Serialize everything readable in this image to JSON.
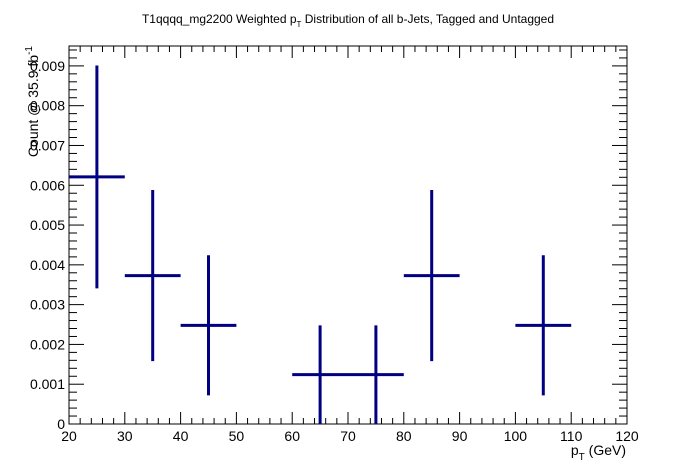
{
  "chart_data": {
    "type": "scatter",
    "title": {
      "pre": "T1qqqq_mg2200 Weighted p",
      "sub": "T",
      "post": " Distribution of all b-Jets, Tagged and Untagged"
    },
    "xlabel": {
      "main": "p",
      "sub": "T",
      "post": " (GeV)"
    },
    "ylabel": {
      "main": "Count @ 35.9 fb",
      "sup": "-1"
    },
    "xlim": [
      20,
      120
    ],
    "ylim": [
      0,
      0.0095
    ],
    "x_ticks": [
      "20",
      "30",
      "40",
      "50",
      "60",
      "70",
      "80",
      "90",
      "100",
      "110",
      "120"
    ],
    "y_ticks": [
      "0",
      "0.001",
      "0.002",
      "0.003",
      "0.004",
      "0.005",
      "0.006",
      "0.007",
      "0.008",
      "0.009"
    ],
    "series": [
      {
        "color": "#000080",
        "points": [
          {
            "x": 25,
            "x_low": 20,
            "x_high": 30,
            "y": 0.00621,
            "y_err": 0.0028
          },
          {
            "x": 35,
            "x_low": 30,
            "x_high": 40,
            "y": 0.00373,
            "y_err": 0.00215
          },
          {
            "x": 45,
            "x_low": 40,
            "x_high": 50,
            "y": 0.00248,
            "y_err": 0.00176
          },
          {
            "x": 65,
            "x_low": 60,
            "x_high": 70,
            "y": 0.00124,
            "y_err": 0.00124
          },
          {
            "x": 75,
            "x_low": 70,
            "x_high": 80,
            "y": 0.00124,
            "y_err": 0.00124
          },
          {
            "x": 85,
            "x_low": 80,
            "x_high": 90,
            "y": 0.00373,
            "y_err": 0.00215
          },
          {
            "x": 105,
            "x_low": 100,
            "x_high": 110,
            "y": 0.00248,
            "y_err": 0.00176
          }
        ]
      }
    ],
    "grid": false,
    "legend": "none"
  }
}
